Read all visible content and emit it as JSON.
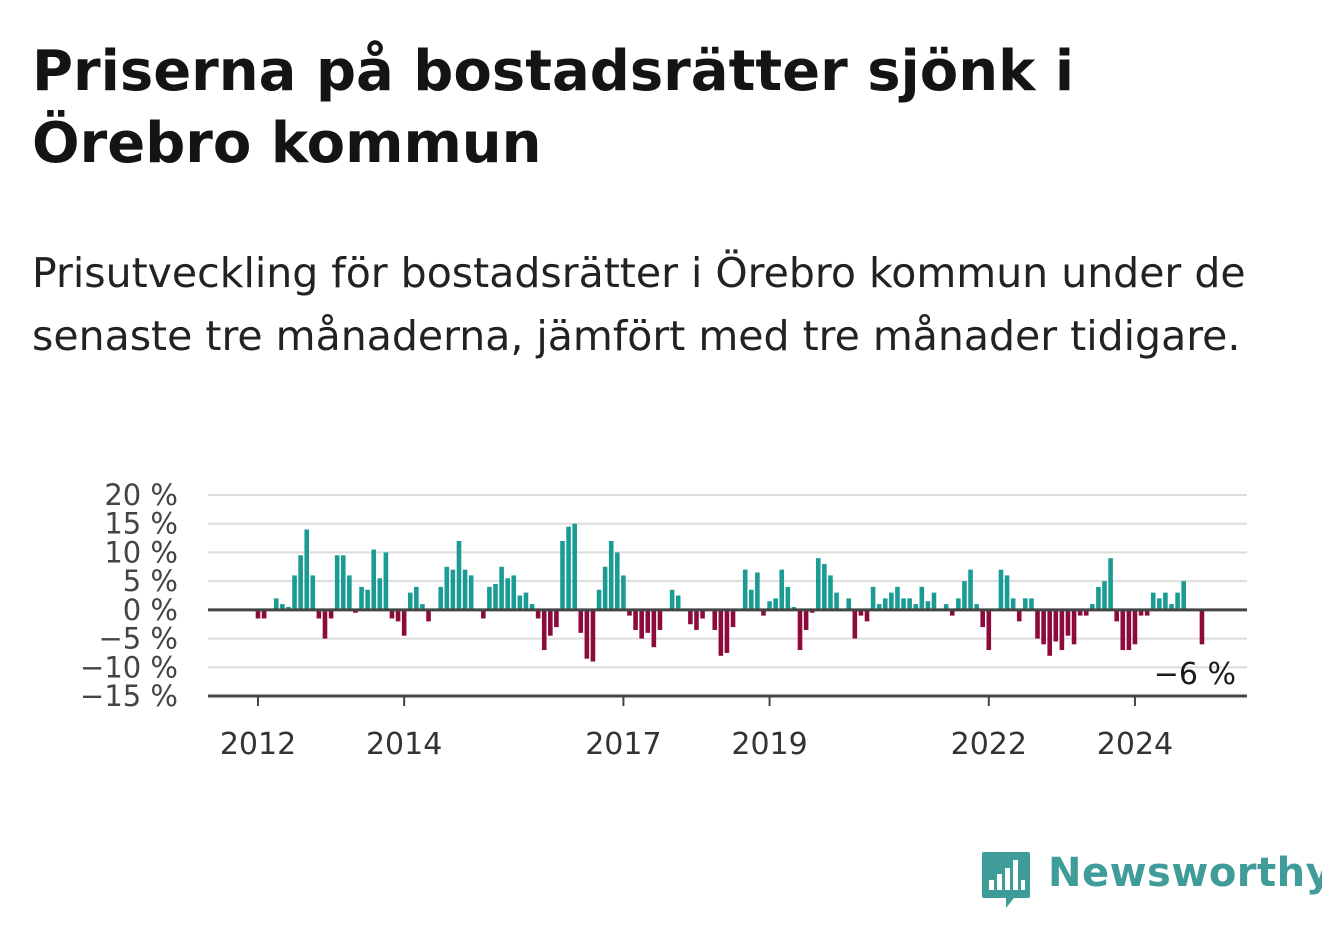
{
  "header": {
    "title": "Priserna på bostadsrätter sjönk i Örebro kommun",
    "subtitle": "Prisutveckling för bostadsrätter i Örebro kommun under de senaste tre månaderna, jämfört med tre månader tidigare."
  },
  "brand": {
    "name": "Newsworthy",
    "icon": "bar-chart-speech-bubble-icon"
  },
  "colors": {
    "positive": "#1a9c94",
    "negative": "#8c0a3c",
    "grid": "#dddddd",
    "axis": "#444444",
    "brand": "#3f9c98"
  },
  "chart_data": {
    "type": "bar",
    "title": "",
    "xlabel": "",
    "ylabel": "",
    "ylim": [
      -15,
      20
    ],
    "yticks": [
      20,
      15,
      10,
      5,
      0,
      -5,
      -10,
      -15
    ],
    "ytick_labels": [
      "20 %",
      "15 %",
      "10 %",
      "5 %",
      "0 %",
      "−5 %",
      "−10 %",
      "−15 %"
    ],
    "xticks": [
      "2012",
      "2014",
      "2017",
      "2019",
      "2022",
      "2024"
    ],
    "xtick_years": [
      2012,
      2014,
      2017,
      2019,
      2022,
      2024
    ],
    "x_start": "2012-01",
    "grid": true,
    "legend": "none",
    "last_value_label": "−6 %",
    "values": [
      -1.5,
      -1.5,
      0,
      2,
      1,
      0.5,
      6,
      9.5,
      14,
      6,
      -1.5,
      -5,
      -1.5,
      9.5,
      9.5,
      6,
      -0.5,
      4,
      3.5,
      10.5,
      5.5,
      10,
      -1.5,
      -2,
      -4.5,
      3,
      4,
      1,
      -2,
      0,
      4,
      7.5,
      7,
      12,
      7,
      6,
      0,
      -1.5,
      4,
      4.5,
      7.5,
      5.5,
      6,
      2.5,
      3,
      1,
      -1.5,
      -7,
      -4.5,
      -3,
      12,
      14.5,
      15,
      -4,
      -8.5,
      -9,
      3.5,
      7.5,
      12,
      10,
      6,
      -1,
      -3.5,
      -5,
      -4,
      -6.5,
      -3.5,
      0,
      3.5,
      2.5,
      0,
      -2.5,
      -3.5,
      -1.5,
      0,
      -3.5,
      -8,
      -7.5,
      -3,
      0,
      7,
      3.5,
      6.5,
      -1,
      1.5,
      2,
      7,
      4,
      0.5,
      -7,
      -3.5,
      -0.5,
      9,
      8,
      6,
      3,
      0,
      2,
      -5,
      -1,
      -2,
      4,
      1,
      2,
      3,
      4,
      2,
      2,
      1,
      4,
      1.5,
      3,
      0,
      1,
      -1,
      2,
      5,
      7,
      1,
      -3,
      -7,
      0,
      7,
      6,
      2,
      -2,
      2,
      2,
      -5,
      -6,
      -8,
      -5.5,
      -7,
      -4.5,
      -6,
      -1,
      -1,
      1,
      4,
      5,
      9,
      -2,
      -7,
      -7,
      -6,
      -1,
      -1,
      3,
      2,
      3,
      1,
      3,
      5,
      0,
      0,
      -6
    ]
  }
}
